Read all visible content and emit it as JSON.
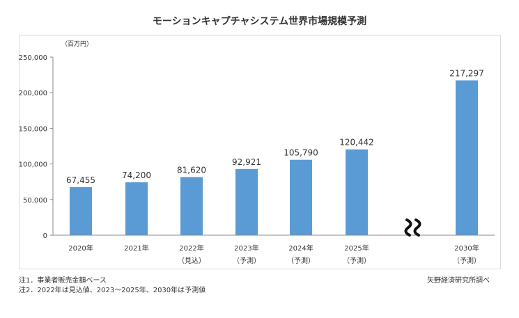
{
  "chart_data": {
    "type": "bar",
    "title": "モーションキャプチャシステム世界市場規模予測",
    "unit_label": "（百万円）",
    "categories": [
      "2020年",
      "2021年",
      "2022年",
      "2023年",
      "2024年",
      "2025年",
      "2030年"
    ],
    "category_notes": [
      "",
      "",
      "（見込）",
      "（予測）",
      "（予測）",
      "（予測）",
      "（予測）"
    ],
    "values": [
      67455,
      74200,
      81620,
      92921,
      105790,
      120442,
      217297
    ],
    "value_labels": [
      "67,455",
      "74,200",
      "81,620",
      "92,921",
      "105,790",
      "120,442",
      "217,297"
    ],
    "ylim": [
      0,
      250000
    ],
    "yticks": [
      0,
      50000,
      100000,
      150000,
      200000,
      250000
    ],
    "ytick_labels": [
      "0",
      "50,000",
      "100,000",
      "150,000",
      "200,000",
      "250,000"
    ],
    "axis_break_before_index": 6,
    "grid": false,
    "bar_color": "#5b9bd5"
  },
  "notes": {
    "note1": "注1．事業者販売金額ベース",
    "note2": "注2．2022年は見込値、2023～2025年、2030年は予測値",
    "source": "矢野経済研究所調べ"
  }
}
